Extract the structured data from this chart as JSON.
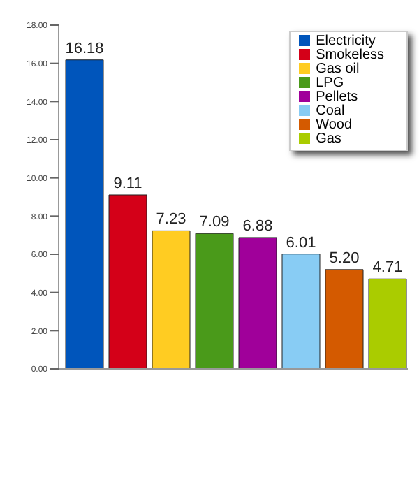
{
  "chart_data": {
    "type": "bar",
    "categories": [
      null
    ],
    "series": [
      {
        "name": "Electricity",
        "color": "#0055bb",
        "values": [
          16.18
        ],
        "value_labels": [
          "16.18"
        ]
      },
      {
        "name": "Smokeless",
        "color": "#d40018",
        "values": [
          9.11
        ],
        "value_labels": [
          "9.11"
        ]
      },
      {
        "name": "Gas oil",
        "color": "#ffcc22",
        "values": [
          7.23
        ],
        "value_labels": [
          "7.23"
        ]
      },
      {
        "name": "LPG",
        "color": "#4a9a1a",
        "values": [
          7.09
        ],
        "value_labels": [
          "7.09"
        ]
      },
      {
        "name": "Pellets",
        "color": "#a0009a",
        "values": [
          6.88
        ],
        "value_labels": [
          "6.88"
        ]
      },
      {
        "name": "Coal",
        "color": "#88ccf4",
        "values": [
          6.01
        ],
        "value_labels": [
          "6.01"
        ]
      },
      {
        "name": "Wood",
        "color": "#d45a00",
        "values": [
          5.2
        ],
        "value_labels": [
          "5.20"
        ]
      },
      {
        "name": "Gas",
        "color": "#aacc00",
        "values": [
          4.71
        ],
        "value_labels": [
          "4.71"
        ]
      }
    ],
    "ylim": [
      0,
      18
    ],
    "yticks": [
      {
        "value": 0,
        "label": "0.00"
      },
      {
        "value": 2,
        "label": "2.00"
      },
      {
        "value": 4,
        "label": "4.00"
      },
      {
        "value": 6,
        "label": "6.00"
      },
      {
        "value": 8,
        "label": "8.00"
      },
      {
        "value": 10,
        "label": "10.00"
      },
      {
        "value": 12,
        "label": "12.00"
      },
      {
        "value": 14,
        "label": "14.00"
      },
      {
        "value": 16,
        "label": "16.00"
      },
      {
        "value": 18,
        "label": "18.00"
      }
    ],
    "grid": false,
    "legend": "top right"
  }
}
